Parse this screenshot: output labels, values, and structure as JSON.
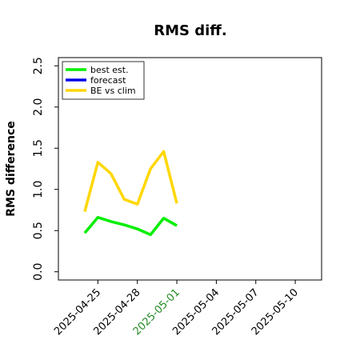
{
  "chart_data": {
    "type": "line",
    "title": "RMS diff.",
    "y_label": "RMS difference",
    "x": [
      "2025-04-24",
      "2025-04-25",
      "2025-04-26",
      "2025-04-27",
      "2025-04-28",
      "2025-04-29",
      "2025-04-30",
      "2025-05-01"
    ],
    "series": [
      {
        "name": "best est.",
        "color": "#00ee00",
        "values": [
          0.47,
          0.66,
          0.61,
          0.57,
          0.52,
          0.45,
          0.65,
          0.56
        ]
      },
      {
        "name": "forecast",
        "color": "#0000ee",
        "values": [
          null,
          null,
          null,
          null,
          null,
          null,
          null,
          null
        ]
      },
      {
        "name": "BE vs clim",
        "color": "#ffd700",
        "values": [
          0.73,
          1.33,
          1.19,
          0.88,
          0.82,
          1.25,
          1.46,
          0.83
        ]
      }
    ],
    "xlim": [
      "2025-04-22",
      "2025-05-12"
    ],
    "xticks": [
      "2025-04-25",
      "2025-04-28",
      "2025-05-01",
      "2025-05-04",
      "2025-05-07",
      "2025-05-10"
    ],
    "xtick_colors": [
      "#000000",
      "#000000",
      "#228b22",
      "#000000",
      "#000000",
      "#000000"
    ],
    "ylim": [
      -0.1,
      2.6
    ],
    "yticks": [
      0.0,
      0.5,
      1.0,
      1.5,
      2.0,
      2.5
    ],
    "legend": "upper left"
  }
}
